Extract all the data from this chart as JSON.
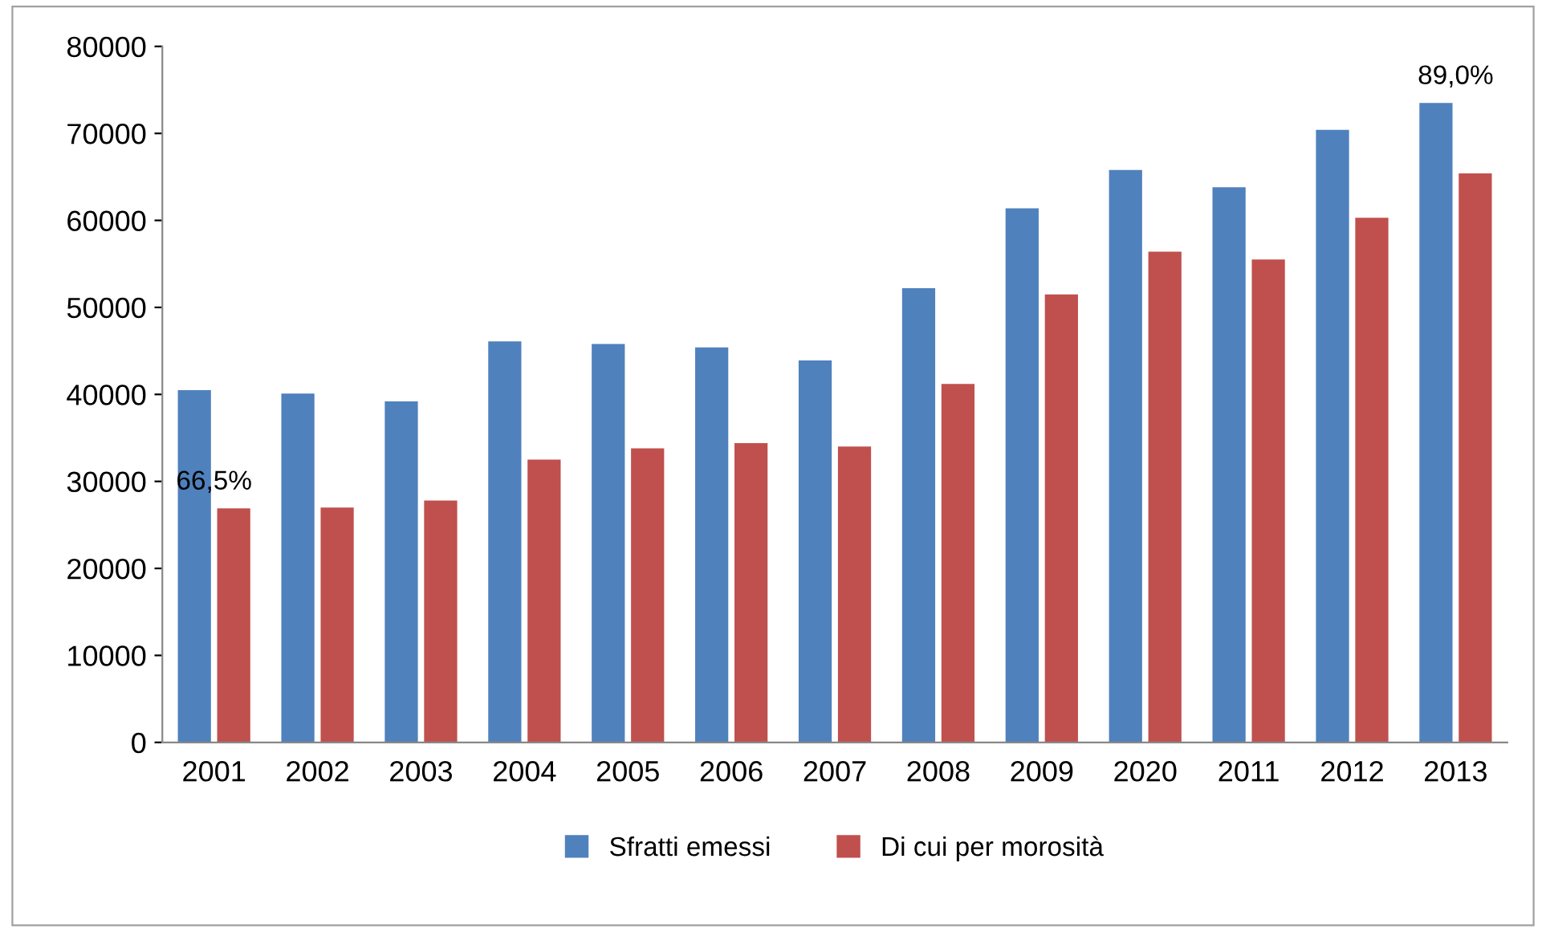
{
  "chart_data": {
    "type": "bar",
    "categories": [
      "2001",
      "2002",
      "2003",
      "2004",
      "2005",
      "2006",
      "2007",
      "2008",
      "2009",
      "2020",
      "2011",
      "2012",
      "2013"
    ],
    "series": [
      {
        "name": "Sfratti emessi",
        "color": "#4f81bd",
        "values": [
          40500,
          40100,
          39200,
          46100,
          45800,
          45400,
          43900,
          52200,
          61400,
          65800,
          63800,
          70400,
          73500
        ]
      },
      {
        "name": "Di cui per morosità",
        "color": "#c0504d",
        "values": [
          26900,
          27000,
          27800,
          32500,
          33800,
          34400,
          34000,
          41200,
          51500,
          56400,
          55500,
          60300,
          65400
        ]
      }
    ],
    "ylim": [
      0,
      80000
    ],
    "yticks": [
      0,
      10000,
      20000,
      30000,
      40000,
      50000,
      60000,
      70000,
      80000
    ],
    "annotations": [
      {
        "text": "66,5%",
        "x": "2001",
        "y": 26900
      },
      {
        "text": "89,0%",
        "x": "2013",
        "y": 73500
      }
    ],
    "grid": false,
    "legend": "bottom"
  }
}
